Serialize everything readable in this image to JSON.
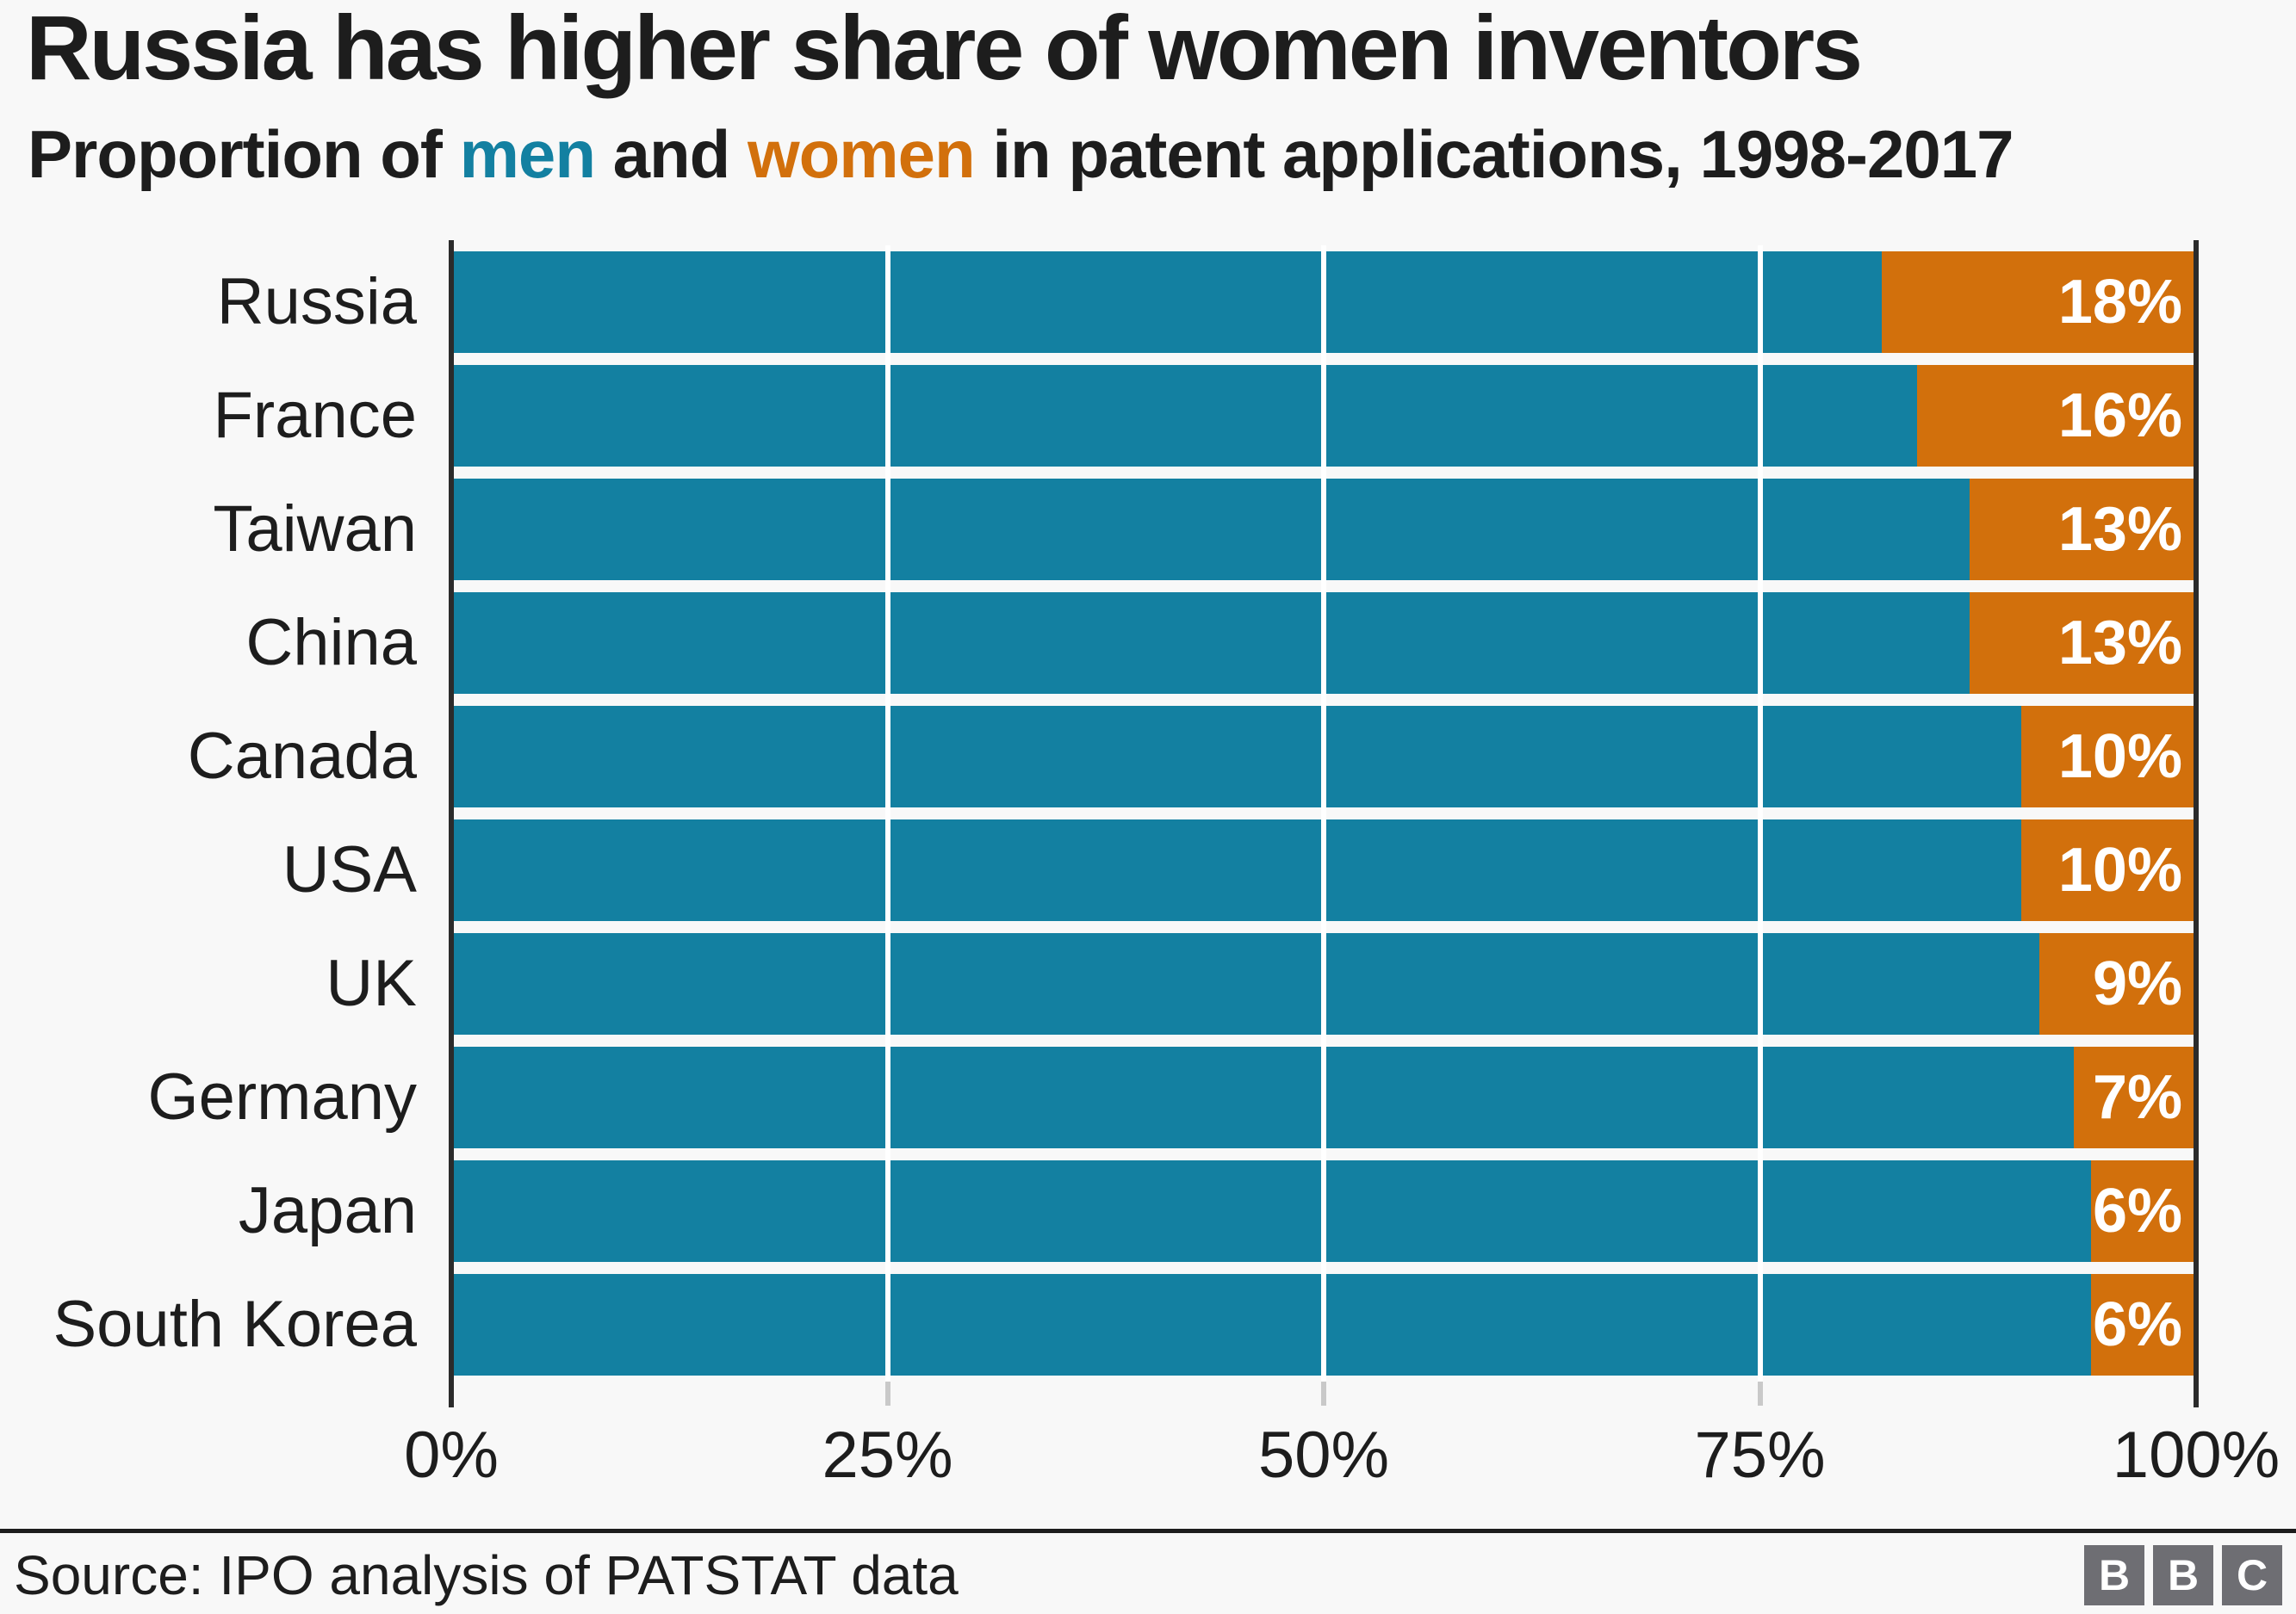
{
  "header": {
    "title": "Russia has higher share of women inventors",
    "subtitle_parts": {
      "prefix": "Proportion of ",
      "men_word": "men",
      "mid": " and ",
      "women_word": "women",
      "suffix": " in patent applications, 1998-2017"
    }
  },
  "colors": {
    "men": "#1380A1",
    "women": "#D2700C",
    "background": "#f8f8f8",
    "text": "#1d1d1d",
    "axis_spine": "#2b2b2b",
    "gridline": "#ffffff",
    "logo_gray": "#6e6e73"
  },
  "chart_data": {
    "type": "bar",
    "orientation": "horizontal",
    "stacked": true,
    "title": "Russia has higher share of women inventors",
    "subtitle": "Proportion of men and women in patent applications, 1998-2017",
    "categories": [
      "Russia",
      "France",
      "Taiwan",
      "China",
      "Canada",
      "USA",
      "UK",
      "Germany",
      "Japan",
      "South Korea"
    ],
    "series": [
      {
        "name": "men",
        "color": "#1380A1",
        "values": [
          82,
          84,
          87,
          87,
          90,
          90,
          91,
          93,
          94,
          94
        ]
      },
      {
        "name": "women",
        "color": "#D2700C",
        "values": [
          18,
          16,
          13,
          13,
          10,
          10,
          9,
          7,
          6,
          6
        ]
      }
    ],
    "bar_labels": [
      "18%",
      "16%",
      "13%",
      "13%",
      "10%",
      "10%",
      "9%",
      "7%",
      "6%",
      "6%"
    ],
    "xlim": [
      0,
      100
    ],
    "x_ticks": [
      {
        "label": "0%",
        "value": 0
      },
      {
        "label": "25%",
        "value": 25
      },
      {
        "label": "50%",
        "value": 50
      },
      {
        "label": "75%",
        "value": 75
      },
      {
        "label": "100%",
        "value": 100
      }
    ],
    "gridlines_at": [
      25,
      50,
      75
    ],
    "legend": "inline colored words in subtitle",
    "value_labels_position": "inside-end-of-women-segment"
  },
  "footer": {
    "source": "Source: IPO analysis of PATSTAT data",
    "logo_letters": [
      "B",
      "B",
      "C"
    ]
  }
}
